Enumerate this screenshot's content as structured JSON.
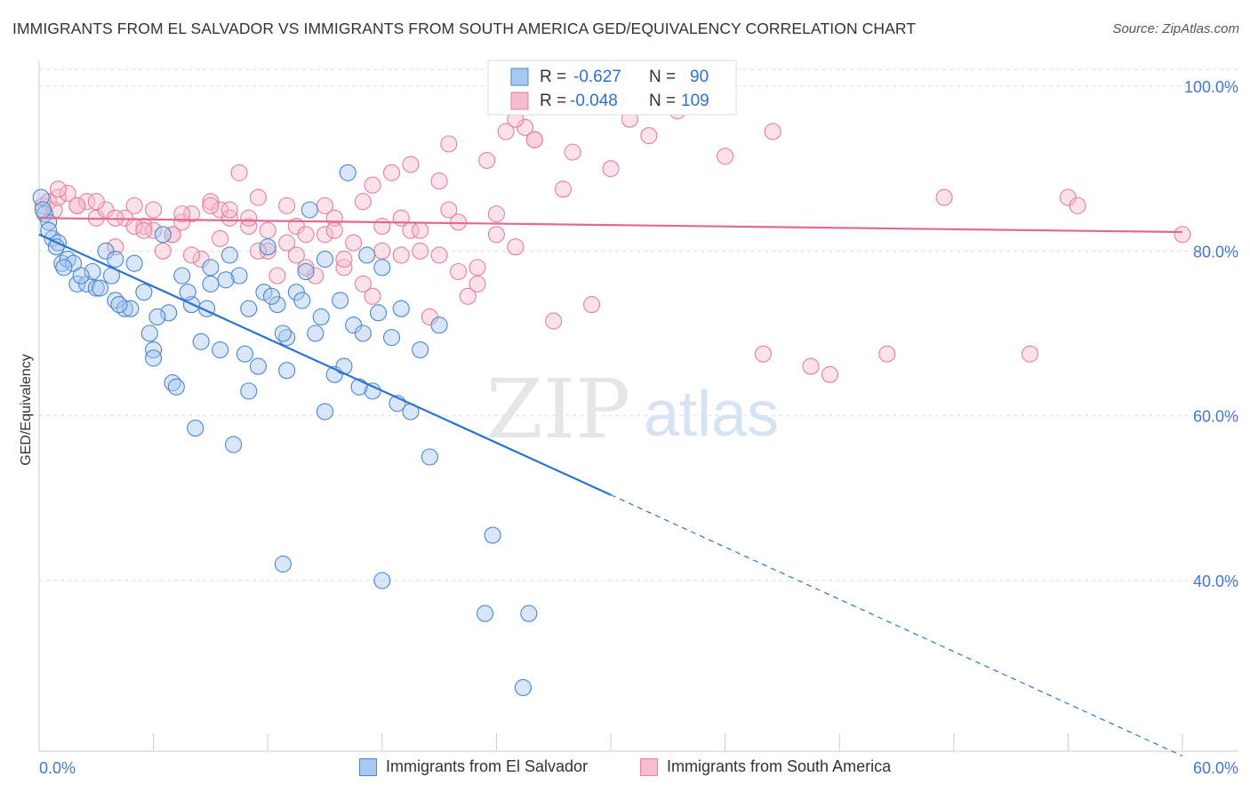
{
  "header": {
    "title": "IMMIGRANTS FROM EL SALVADOR VS IMMIGRANTS FROM SOUTH AMERICA GED/EQUIVALENCY CORRELATION CHART",
    "source": "Source: ZipAtlas.com"
  },
  "watermark": {
    "zip": "ZIP",
    "atlas": "atlas"
  },
  "legend_stats": {
    "r_label": "R =",
    "n_label": "N =",
    "rows": [
      {
        "r": "-0.627",
        "n": "90"
      },
      {
        "r": "-0.048",
        "n": "109"
      }
    ]
  },
  "colors": {
    "blue_fill": "#a9c8f0",
    "blue_stroke": "#4a86d0",
    "blue_line": "#2a74cf",
    "pink_fill": "#f6bccc",
    "pink_stroke": "#e47f9c",
    "pink_line": "#e26a90",
    "axis_text": "#4477cc",
    "grid": "#dddddd"
  },
  "chart_data": {
    "type": "scatter",
    "xlabel": "",
    "ylabel": "GED/Equivalency",
    "xlim": [
      0,
      60
    ],
    "ylim": [
      20,
      104
    ],
    "x_tick_labels": [
      "0.0%",
      "60.0%"
    ],
    "y_ticks": [
      40,
      60,
      80,
      100
    ],
    "y_tick_labels": [
      "40.0%",
      "60.0%",
      "80.0%",
      "100.0%"
    ],
    "grid": true,
    "legend_position": "bottom",
    "series": [
      {
        "name": "Immigrants from El Salvador",
        "color": "#4a86d0",
        "r": -0.627,
        "n": 90,
        "trend": {
          "x0": 0,
          "y0": 82.0,
          "x1": 30,
          "y1": 50.4,
          "x_dash_end": 60,
          "y_dash_end": 18.7
        },
        "points": [
          [
            0.1,
            86.5
          ],
          [
            0.3,
            84.5
          ],
          [
            0.5,
            83.5
          ],
          [
            0.7,
            81.5
          ],
          [
            1.0,
            81.0
          ],
          [
            1.2,
            78.5
          ],
          [
            1.5,
            79.0
          ],
          [
            2.0,
            76.0
          ],
          [
            2.5,
            76.0
          ],
          [
            3.0,
            75.5
          ],
          [
            3.5,
            80.0
          ],
          [
            4.0,
            74.0
          ],
          [
            4.5,
            73.0
          ],
          [
            5.0,
            78.5
          ],
          [
            5.5,
            75.0
          ],
          [
            6.0,
            68.0
          ],
          [
            6.5,
            82.0
          ],
          [
            7.0,
            64.0
          ],
          [
            7.5,
            77.0
          ],
          [
            8.0,
            73.5
          ],
          [
            8.5,
            69.0
          ],
          [
            9.0,
            78.0
          ],
          [
            9.5,
            68.0
          ],
          [
            10.0,
            79.5
          ],
          [
            10.5,
            77.0
          ],
          [
            11.0,
            63.0
          ],
          [
            11.5,
            66.0
          ],
          [
            12.0,
            80.5
          ],
          [
            12.5,
            73.5
          ],
          [
            13.0,
            69.5
          ],
          [
            13.5,
            75.0
          ],
          [
            14.0,
            77.5
          ],
          [
            14.5,
            70.0
          ],
          [
            15.0,
            79.0
          ],
          [
            15.5,
            65.0
          ],
          [
            16.0,
            66.0
          ],
          [
            16.5,
            71.0
          ],
          [
            17.0,
            70.0
          ],
          [
            17.5,
            63.0
          ],
          [
            18.0,
            78.0
          ],
          [
            18.5,
            69.5
          ],
          [
            19.0,
            73.0
          ],
          [
            19.5,
            60.5
          ],
          [
            20.0,
            68.0
          ],
          [
            20.5,
            55.0
          ],
          [
            21.0,
            71.0
          ],
          [
            0.5,
            82.5
          ],
          [
            1.8,
            78.5
          ],
          [
            2.8,
            77.5
          ],
          [
            3.8,
            77.0
          ],
          [
            4.8,
            73.0
          ],
          [
            5.8,
            70.0
          ],
          [
            6.8,
            72.5
          ],
          [
            7.8,
            75.0
          ],
          [
            8.8,
            73.0
          ],
          [
            9.8,
            76.5
          ],
          [
            10.8,
            67.5
          ],
          [
            11.8,
            75.0
          ],
          [
            12.8,
            70.0
          ],
          [
            13.8,
            74.0
          ],
          [
            14.8,
            72.0
          ],
          [
            15.8,
            74.0
          ],
          [
            16.8,
            63.5
          ],
          [
            17.8,
            72.5
          ],
          [
            18.8,
            61.5
          ],
          [
            0.2,
            85.0
          ],
          [
            0.9,
            80.5
          ],
          [
            1.3,
            78.0
          ],
          [
            2.2,
            77.0
          ],
          [
            3.2,
            75.5
          ],
          [
            4.2,
            73.5
          ],
          [
            6.2,
            72.0
          ],
          [
            7.2,
            63.5
          ],
          [
            8.2,
            58.5
          ],
          [
            10.2,
            56.5
          ],
          [
            12.2,
            74.5
          ],
          [
            14.2,
            85.0
          ],
          [
            16.2,
            89.5
          ],
          [
            17.2,
            79.5
          ],
          [
            9.0,
            76.0
          ],
          [
            11.0,
            73.0
          ],
          [
            13.0,
            65.5
          ],
          [
            15.0,
            60.5
          ],
          [
            6.0,
            67.0
          ],
          [
            4.0,
            79.0
          ],
          [
            12.8,
            42.0
          ],
          [
            18.0,
            40.0
          ],
          [
            23.8,
            45.5
          ],
          [
            23.4,
            36.0
          ],
          [
            25.7,
            36.0
          ],
          [
            25.4,
            27.0
          ]
        ]
      },
      {
        "name": "Immigrants from South America",
        "color": "#e47f9c",
        "r": -0.048,
        "n": 109,
        "trend": {
          "x0": 0,
          "y0": 84.0,
          "x1": 60,
          "y1": 82.3
        },
        "points": [
          [
            0.2,
            85.5
          ],
          [
            0.5,
            86.0
          ],
          [
            0.8,
            85.0
          ],
          [
            1.0,
            86.5
          ],
          [
            1.5,
            87.0
          ],
          [
            2.0,
            85.5
          ],
          [
            2.5,
            86.0
          ],
          [
            3.0,
            84.0
          ],
          [
            3.5,
            85.0
          ],
          [
            4.0,
            80.5
          ],
          [
            4.5,
            84.0
          ],
          [
            5.0,
            85.5
          ],
          [
            5.5,
            83.0
          ],
          [
            6.0,
            85.0
          ],
          [
            6.5,
            80.0
          ],
          [
            7.0,
            82.0
          ],
          [
            7.5,
            83.5
          ],
          [
            8.0,
            84.5
          ],
          [
            8.5,
            79.0
          ],
          [
            9.0,
            86.0
          ],
          [
            9.5,
            85.0
          ],
          [
            10.0,
            84.0
          ],
          [
            10.5,
            89.5
          ],
          [
            11.0,
            83.0
          ],
          [
            11.5,
            86.5
          ],
          [
            12.0,
            80.0
          ],
          [
            12.5,
            77.0
          ],
          [
            13.0,
            85.5
          ],
          [
            13.5,
            83.0
          ],
          [
            14.0,
            82.0
          ],
          [
            14.5,
            77.0
          ],
          [
            15.0,
            85.5
          ],
          [
            15.5,
            84.0
          ],
          [
            16.0,
            78.0
          ],
          [
            16.5,
            81.0
          ],
          [
            17.0,
            86.0
          ],
          [
            17.5,
            74.5
          ],
          [
            18.0,
            83.0
          ],
          [
            18.5,
            89.5
          ],
          [
            19.0,
            84.0
          ],
          [
            19.5,
            82.5
          ],
          [
            20.0,
            80.0
          ],
          [
            20.5,
            72.0
          ],
          [
            21.0,
            88.5
          ],
          [
            21.5,
            85.0
          ],
          [
            22.0,
            83.5
          ],
          [
            22.5,
            74.5
          ],
          [
            23.0,
            78.0
          ],
          [
            23.5,
            91.0
          ],
          [
            24.0,
            84.5
          ],
          [
            24.5,
            94.5
          ],
          [
            25.0,
            80.5
          ],
          [
            25.5,
            95.0
          ],
          [
            26.0,
            93.5
          ],
          [
            27.0,
            71.5
          ],
          [
            28.0,
            92.0
          ],
          [
            29.0,
            73.5
          ],
          [
            30.0,
            90.0
          ],
          [
            31.0,
            96.0
          ],
          [
            32.0,
            94.0
          ],
          [
            33.5,
            97.0
          ],
          [
            34.5,
            99.0
          ],
          [
            36.0,
            91.5
          ],
          [
            38.0,
            67.5
          ],
          [
            38.5,
            94.5
          ],
          [
            40.5,
            66.0
          ],
          [
            41.5,
            65.0
          ],
          [
            44.5,
            67.5
          ],
          [
            47.5,
            86.5
          ],
          [
            52.0,
            67.5
          ],
          [
            54.0,
            86.5
          ],
          [
            54.5,
            85.5
          ],
          [
            60.0,
            82.0
          ],
          [
            1.0,
            87.5
          ],
          [
            2.0,
            85.5
          ],
          [
            3.0,
            86.0
          ],
          [
            4.0,
            84.0
          ],
          [
            5.0,
            83.0
          ],
          [
            6.0,
            82.5
          ],
          [
            7.0,
            82.0
          ],
          [
            8.0,
            79.5
          ],
          [
            9.0,
            85.5
          ],
          [
            10.0,
            85.0
          ],
          [
            11.0,
            84.0
          ],
          [
            12.0,
            82.5
          ],
          [
            13.0,
            81.0
          ],
          [
            14.0,
            78.0
          ],
          [
            15.0,
            82.0
          ],
          [
            16.0,
            79.0
          ],
          [
            17.0,
            76.0
          ],
          [
            18.0,
            80.0
          ],
          [
            19.0,
            79.5
          ],
          [
            20.0,
            82.5
          ],
          [
            21.0,
            79.5
          ],
          [
            22.0,
            77.5
          ],
          [
            23.0,
            76.0
          ],
          [
            24.0,
            82.0
          ],
          [
            25.0,
            96.0
          ],
          [
            26.0,
            93.5
          ],
          [
            27.5,
            87.5
          ],
          [
            21.5,
            93.0
          ],
          [
            19.5,
            90.5
          ],
          [
            17.5,
            88.0
          ],
          [
            15.5,
            82.5
          ],
          [
            13.5,
            79.5
          ],
          [
            11.5,
            80.0
          ],
          [
            9.5,
            81.5
          ],
          [
            7.5,
            84.5
          ],
          [
            5.5,
            82.5
          ]
        ]
      }
    ]
  },
  "legend_bottom": {
    "items": [
      {
        "label": "Immigrants from El Salvador"
      },
      {
        "label": "Immigrants from South America"
      }
    ]
  }
}
